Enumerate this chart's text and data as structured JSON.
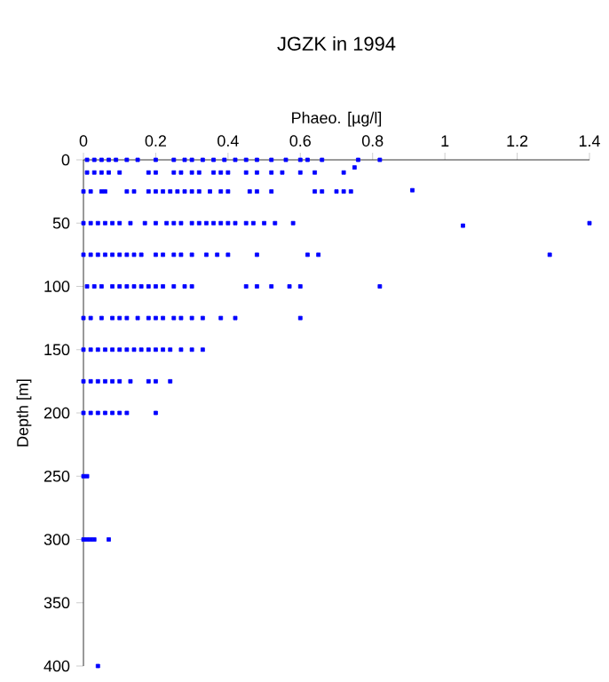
{
  "chart_data": {
    "type": "scatter",
    "title": "JGZK in 1994",
    "xlabel": "Phaeo. [µg/l]",
    "ylabel": "Depth [m]",
    "xlim": [
      0,
      1.4
    ],
    "ylim": [
      400,
      0
    ],
    "xticks": [
      0,
      0.2,
      0.4,
      0.6,
      0.8,
      1,
      1.2,
      1.4
    ],
    "yticks": [
      0,
      50,
      100,
      150,
      200,
      250,
      300,
      350,
      400
    ],
    "grid": false,
    "marker": "square",
    "series": [
      {
        "color": "#0000ff",
        "x": [
          0.01,
          0.03,
          0.05,
          0.07,
          0.09,
          0.12,
          0.15,
          0.2,
          0.25,
          0.28,
          0.3,
          0.33,
          0.36,
          0.39,
          0.42,
          0.45,
          0.48,
          0.52,
          0.56,
          0.6,
          0.62,
          0.66,
          0.76,
          0.82,
          0.01,
          0.03,
          0.05,
          0.07,
          0.1,
          0.18,
          0.2,
          0.25,
          0.27,
          0.3,
          0.32,
          0.36,
          0.38,
          0.4,
          0.45,
          0.48,
          0.52,
          0.55,
          0.6,
          0.64,
          0.72,
          0.75,
          0,
          0.02,
          0.05,
          0.06,
          0.12,
          0.14,
          0.18,
          0.2,
          0.22,
          0.24,
          0.26,
          0.28,
          0.3,
          0.32,
          0.35,
          0.38,
          0.4,
          0.46,
          0.48,
          0.52,
          0.64,
          0.66,
          0.7,
          0.72,
          0.74,
          0.91,
          0,
          0.02,
          0.04,
          0.06,
          0.08,
          0.1,
          0.13,
          0.17,
          0.2,
          0.23,
          0.25,
          0.27,
          0.3,
          0.32,
          0.34,
          0.36,
          0.38,
          0.4,
          0.42,
          0.45,
          0.47,
          0.5,
          0.53,
          0.58,
          1.05,
          1.4,
          0,
          0.02,
          0.04,
          0.06,
          0.08,
          0.1,
          0.12,
          0.14,
          0.16,
          0.2,
          0.22,
          0.25,
          0.27,
          0.3,
          0.34,
          0.37,
          0.4,
          0.48,
          0.62,
          0.65,
          1.29,
          0.01,
          0.03,
          0.05,
          0.08,
          0.1,
          0.12,
          0.14,
          0.16,
          0.18,
          0.2,
          0.22,
          0.25,
          0.28,
          0.3,
          0.45,
          0.48,
          0.52,
          0.57,
          0.6,
          0.82,
          0,
          0.02,
          0.05,
          0.08,
          0.1,
          0.12,
          0.15,
          0.18,
          0.2,
          0.22,
          0.25,
          0.27,
          0.3,
          0.33,
          0.38,
          0.42,
          0.6,
          0,
          0.02,
          0.04,
          0.06,
          0.08,
          0.1,
          0.12,
          0.14,
          0.16,
          0.18,
          0.2,
          0.22,
          0.24,
          0.27,
          0.3,
          0.33,
          0,
          0.02,
          0.04,
          0.06,
          0.08,
          0.1,
          0.13,
          0.18,
          0.2,
          0.24,
          0,
          0.02,
          0.04,
          0.06,
          0.08,
          0.1,
          0.12,
          0.2,
          0,
          0.01,
          0,
          0.01,
          0.02,
          0.03,
          0.07,
          0.04
        ],
        "values": [
          0,
          0,
          0,
          0,
          0,
          0,
          0,
          0,
          0,
          0,
          0,
          0,
          0,
          0,
          0,
          0,
          0,
          0,
          0,
          0,
          0,
          0,
          0,
          0,
          10,
          10,
          10,
          10,
          10,
          10,
          10,
          10,
          10,
          10,
          10,
          10,
          10,
          10,
          10,
          10,
          10,
          10,
          10,
          10,
          10,
          6,
          25,
          25,
          25,
          25,
          25,
          25,
          25,
          25,
          25,
          25,
          25,
          25,
          25,
          25,
          25,
          25,
          25,
          25,
          25,
          25,
          25,
          25,
          25,
          25,
          25,
          24,
          50,
          50,
          50,
          50,
          50,
          50,
          50,
          50,
          50,
          50,
          50,
          50,
          50,
          50,
          50,
          50,
          50,
          50,
          50,
          50,
          50,
          50,
          50,
          50,
          52,
          50,
          75,
          75,
          75,
          75,
          75,
          75,
          75,
          75,
          75,
          75,
          75,
          75,
          75,
          75,
          75,
          75,
          75,
          75,
          75,
          75,
          75,
          100,
          100,
          100,
          100,
          100,
          100,
          100,
          100,
          100,
          100,
          100,
          100,
          100,
          100,
          100,
          100,
          100,
          100,
          100,
          100,
          125,
          125,
          125,
          125,
          125,
          125,
          125,
          125,
          125,
          125,
          125,
          125,
          125,
          125,
          125,
          125,
          125,
          150,
          150,
          150,
          150,
          150,
          150,
          150,
          150,
          150,
          150,
          150,
          150,
          150,
          150,
          150,
          150,
          175,
          175,
          175,
          175,
          175,
          175,
          175,
          175,
          175,
          175,
          200,
          200,
          200,
          200,
          200,
          200,
          200,
          200,
          250,
          250,
          300,
          300,
          300,
          300,
          300,
          400
        ]
      }
    ]
  }
}
